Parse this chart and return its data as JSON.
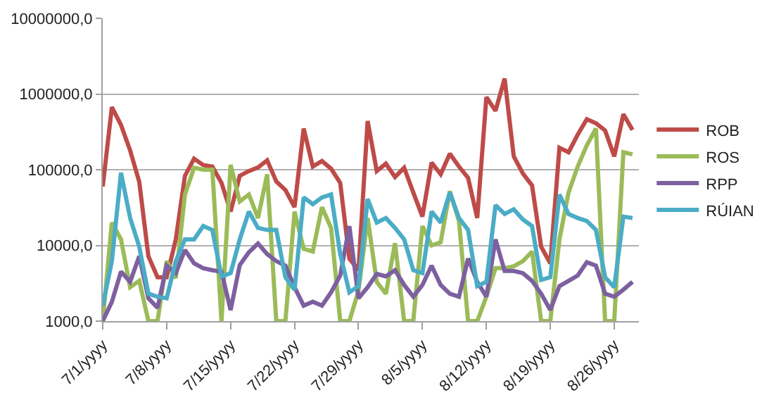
{
  "chart_data": {
    "type": "line",
    "categories": [
      "7/1/yyyy",
      null,
      null,
      null,
      null,
      null,
      null,
      "7/8/yyyy",
      null,
      null,
      null,
      null,
      null,
      null,
      "7/15/yyyy",
      null,
      null,
      null,
      null,
      null,
      null,
      "7/22/yyyy",
      null,
      null,
      null,
      null,
      null,
      null,
      "7/29/yyyy",
      null,
      null,
      null,
      null,
      null,
      null,
      "8/5/yyyy",
      null,
      null,
      null,
      null,
      null,
      null,
      "8/12/yyyy",
      null,
      null,
      null,
      null,
      null,
      null,
      "8/19/yyyy",
      null,
      null,
      null,
      null,
      null,
      null,
      "8/26/yyyy",
      null,
      null
    ],
    "series": [
      {
        "name": "ROB",
        "color": "#be4b48",
        "values": [
          60000,
          670000,
          390000,
          180000,
          69000,
          7200,
          3800,
          3800,
          12000,
          83000,
          140000,
          115000,
          110000,
          67000,
          28000,
          83000,
          96000,
          107000,
          133000,
          70000,
          54000,
          32000,
          350000,
          110000,
          130000,
          103000,
          67000,
          6700,
          4700,
          440000,
          96000,
          120000,
          80000,
          106000,
          50000,
          24000,
          124000,
          87000,
          163000,
          110000,
          78000,
          23000,
          910000,
          600000,
          1600000,
          150000,
          89000,
          62000,
          9600,
          5800,
          195000,
          170000,
          290000,
          465000,
          410000,
          330000,
          150000,
          540000,
          335000
        ]
      },
      {
        "name": "ROS",
        "color": "#9bbb59",
        "values": [
          1000,
          20000,
          12000,
          2800,
          3400,
          1000,
          1000,
          6200,
          3700,
          47000,
          106000,
          100000,
          100000,
          1000,
          116000,
          38000,
          47000,
          23000,
          87000,
          1000,
          1000,
          28000,
          9000,
          8300,
          32000,
          17000,
          1000,
          1000,
          2500,
          23000,
          3300,
          2300,
          10700,
          1000,
          1000,
          18000,
          10000,
          11000,
          52000,
          21000,
          1000,
          1000,
          2100,
          5000,
          5000,
          5300,
          6200,
          8300,
          1000,
          1000,
          12000,
          50000,
          110000,
          210000,
          350000,
          1000,
          1000,
          170000,
          160000
        ]
      },
      {
        "name": "RPP",
        "color": "#7d60a0",
        "values": [
          1000,
          1800,
          4500,
          3300,
          7200,
          2000,
          1500,
          5400,
          4300,
          8700,
          5800,
          5000,
          4700,
          4500,
          1400,
          5500,
          8100,
          10600,
          7700,
          6200,
          5400,
          2800,
          1600,
          1800,
          1600,
          2400,
          4000,
          18000,
          2000,
          2800,
          4200,
          3900,
          4700,
          3000,
          2100,
          3000,
          5400,
          3000,
          2300,
          2100,
          6700,
          3300,
          2100,
          12000,
          4600,
          4600,
          4300,
          3400,
          2300,
          1400,
          2900,
          3400,
          4000,
          6000,
          5400,
          2300,
          2100,
          2600,
          3300
        ]
      },
      {
        "name": "RÚIAN",
        "color": "#4bacc6",
        "values": [
          1600,
          6200,
          91000,
          23000,
          9600,
          2300,
          2100,
          2000,
          6200,
          12000,
          12000,
          18000,
          16000,
          3900,
          4300,
          12000,
          28000,
          17000,
          16000,
          16000,
          3800,
          2600,
          43000,
          35000,
          43000,
          47000,
          7700,
          2400,
          2900,
          41000,
          20000,
          23000,
          17000,
          12000,
          4700,
          4300,
          28000,
          20000,
          50000,
          23000,
          16000,
          2900,
          3300,
          34000,
          26000,
          30000,
          22000,
          18000,
          3500,
          3800,
          47000,
          26000,
          23000,
          21000,
          16000,
          3800,
          2800,
          24000,
          23000
        ]
      }
    ],
    "log": "y",
    "ylim": [
      1000,
      10000000
    ],
    "yticks": [
      {
        "value": 1000,
        "label": "1000,0"
      },
      {
        "value": 10000,
        "label": "10000,0"
      },
      {
        "value": 100000,
        "label": "100000,0"
      },
      {
        "value": 1000000,
        "label": "1000000,0"
      },
      {
        "value": 10000000,
        "label": "10000000,0"
      }
    ],
    "grid": "y",
    "legend": "right",
    "marker": "none",
    "line_style": "solid"
  }
}
